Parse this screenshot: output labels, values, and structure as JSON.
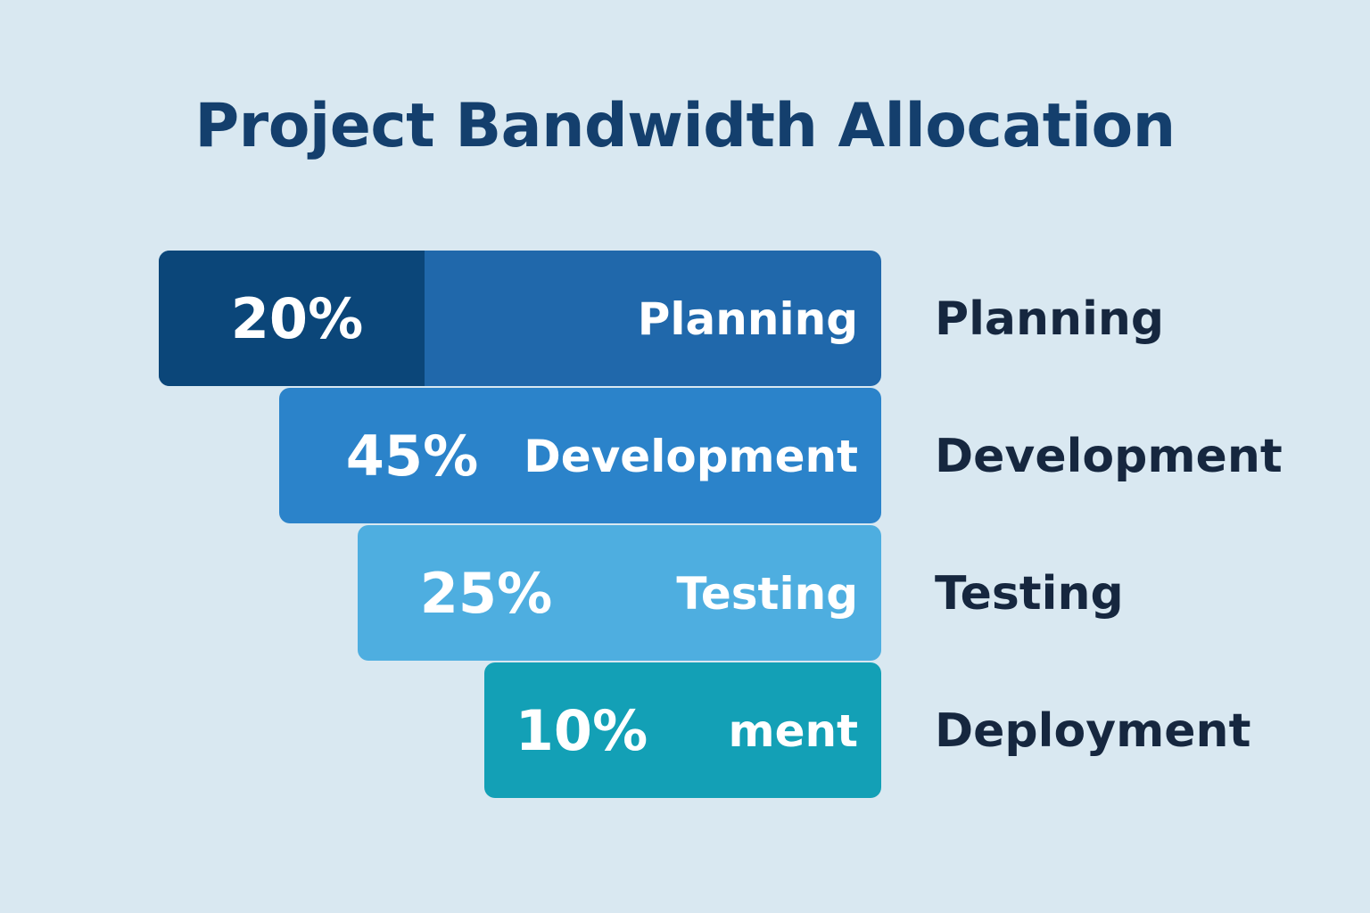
{
  "chart_data": {
    "type": "bar",
    "title": "Project Bandwidth Allocation",
    "categories": [
      "Planning",
      "Development",
      "Testing",
      "Deployment"
    ],
    "values": [
      20,
      45,
      25,
      10
    ],
    "value_labels": [
      "20%",
      "45%",
      "25%",
      "10%"
    ],
    "bar_labels": [
      "Planning",
      "Development",
      "Testing",
      "ment"
    ],
    "legend_labels": [
      "Planning",
      "Development",
      "Testing",
      "Deployment"
    ],
    "unit": "%",
    "grid": false,
    "colors": {
      "background": "#d9e8f1",
      "title": "#143f6d",
      "legend_text": "#16273f",
      "planning_accent": "#0b4679",
      "planning": "#2068ab",
      "development": "#2b83ca",
      "testing": "#4eaee0",
      "deployment": "#13a0b6"
    }
  }
}
